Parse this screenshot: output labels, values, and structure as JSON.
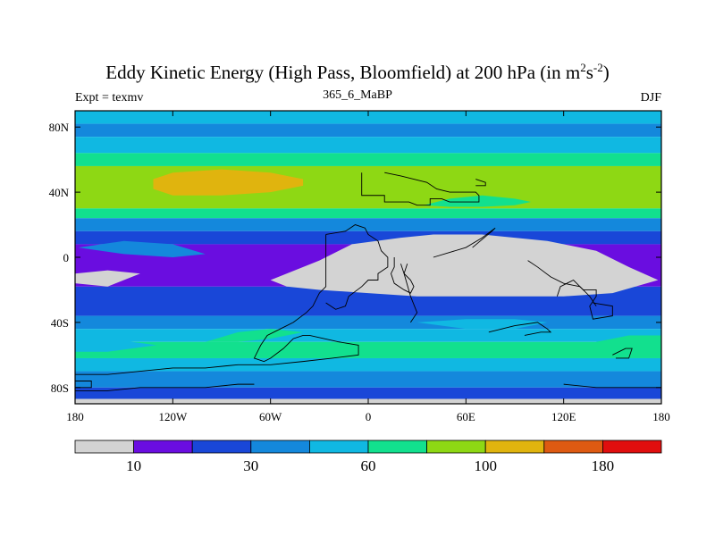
{
  "chart_data": {
    "type": "heatmap",
    "title_main": "Eddy Kinetic Energy (High Pass, Bloomfield) at 200 hPa (in m",
    "title_sup1": "2",
    "title_mid": "s",
    "title_sup2": "-2",
    "title_end": ")",
    "subtitle": "365_6_MaBP",
    "left_label": "Expt = texmv",
    "right_label": "DJF",
    "x_ticks": [
      {
        "lon": -180,
        "label": "180"
      },
      {
        "lon": -120,
        "label": "120W"
      },
      {
        "lon": -60,
        "label": "60W"
      },
      {
        "lon": 0,
        "label": "0"
      },
      {
        "lon": 60,
        "label": "60E"
      },
      {
        "lon": 120,
        "label": "120E"
      },
      {
        "lon": 180,
        "label": "180"
      }
    ],
    "y_ticks": [
      {
        "lat": 80,
        "label": "80N"
      },
      {
        "lat": 40,
        "label": "40N"
      },
      {
        "lat": 0,
        "label": "0"
      },
      {
        "lat": -40,
        "label": "40S"
      },
      {
        "lat": -80,
        "label": "80S"
      }
    ],
    "xlim": [
      -180,
      180
    ],
    "ylim": [
      -90,
      90
    ],
    "colorbar": {
      "colors": [
        "#d3d3d3",
        "#6a0de0",
        "#1947d8",
        "#1488dc",
        "#10b8e2",
        "#12e08e",
        "#8ed814",
        "#e0b40e",
        "#de5a12",
        "#e00e0e"
      ],
      "labels": [
        {
          "boundary_index": 1,
          "label": "10"
        },
        {
          "boundary_index": 3,
          "label": "30"
        },
        {
          "boundary_index": 5,
          "label": "60"
        },
        {
          "boundary_index": 7,
          "label": "100"
        },
        {
          "boundary_index": 9,
          "label": "180"
        }
      ]
    },
    "bands": [
      {
        "lat_top": 90,
        "lat_bottom": 82,
        "level": 4
      },
      {
        "lat_top": 82,
        "lat_bottom": 74,
        "level": 3
      },
      {
        "lat_top": 74,
        "lat_bottom": 64,
        "level": 4
      },
      {
        "lat_top": 64,
        "lat_bottom": 56,
        "level": 5
      },
      {
        "lat_top": 56,
        "lat_bottom": 30,
        "level": 6
      },
      {
        "lat_top": 30,
        "lat_bottom": 24,
        "level": 5
      },
      {
        "lat_top": 24,
        "lat_bottom": 16,
        "level": 3
      },
      {
        "lat_top": 16,
        "lat_bottom": 8,
        "level": 2
      },
      {
        "lat_top": 8,
        "lat_bottom": -18,
        "level": 1
      },
      {
        "lat_top": -18,
        "lat_bottom": -36,
        "level": 2
      },
      {
        "lat_top": -36,
        "lat_bottom": -44,
        "level": 3
      },
      {
        "lat_top": -44,
        "lat_bottom": -52,
        "level": 4
      },
      {
        "lat_top": -52,
        "lat_bottom": -62,
        "level": 5
      },
      {
        "lat_top": -62,
        "lat_bottom": -70,
        "level": 4
      },
      {
        "lat_top": -70,
        "lat_bottom": -80,
        "level": 3
      },
      {
        "lat_top": -80,
        "lat_bottom": -87,
        "level": 2
      },
      {
        "lat_top": -87,
        "lat_bottom": -90,
        "level": 0
      }
    ],
    "regions": [
      {
        "level": 7,
        "points": [
          [
            -132,
            48
          ],
          [
            -120,
            52
          ],
          [
            -90,
            54
          ],
          [
            -60,
            52
          ],
          [
            -40,
            48
          ],
          [
            -40,
            44
          ],
          [
            -60,
            40
          ],
          [
            -90,
            38
          ],
          [
            -120,
            38
          ],
          [
            -132,
            42
          ]
        ]
      },
      {
        "level": 5,
        "points": [
          [
            34,
            32
          ],
          [
            50,
            36
          ],
          [
            70,
            38
          ],
          [
            90,
            36
          ],
          [
            100,
            34
          ],
          [
            90,
            32
          ],
          [
            70,
            31
          ],
          [
            50,
            31
          ]
        ]
      },
      {
        "level": 6,
        "points": [
          [
            138,
            48
          ],
          [
            150,
            52
          ],
          [
            165,
            50
          ],
          [
            172,
            44
          ],
          [
            160,
            40
          ],
          [
            146,
            40
          ]
        ]
      },
      {
        "level": 0,
        "points": [
          [
            -180,
            -10
          ],
          [
            -160,
            -8
          ],
          [
            -140,
            -10
          ],
          [
            -160,
            -18
          ],
          [
            -180,
            -16
          ]
        ]
      },
      {
        "level": 0,
        "points": [
          [
            -60,
            -14
          ],
          [
            -30,
            -2
          ],
          [
            -10,
            8
          ],
          [
            20,
            12
          ],
          [
            40,
            14
          ],
          [
            70,
            14
          ],
          [
            110,
            10
          ],
          [
            140,
            4
          ],
          [
            160,
            -6
          ],
          [
            178,
            -14
          ],
          [
            150,
            -22
          ],
          [
            120,
            -24
          ],
          [
            90,
            -24
          ],
          [
            60,
            -24
          ],
          [
            30,
            -24
          ],
          [
            0,
            -22
          ],
          [
            -30,
            -20
          ],
          [
            -50,
            -18
          ]
        ]
      },
      {
        "level": 3,
        "points": [
          [
            -178,
            6
          ],
          [
            -150,
            10
          ],
          [
            -120,
            8
          ],
          [
            -100,
            2
          ],
          [
            -120,
            0
          ],
          [
            -150,
            2
          ]
        ]
      },
      {
        "level": 4,
        "points": [
          [
            -180,
            -52
          ],
          [
            -160,
            -50
          ],
          [
            -130,
            -54
          ],
          [
            -160,
            -58
          ],
          [
            -180,
            -58
          ]
        ]
      },
      {
        "level": 5,
        "points": [
          [
            -100,
            -52
          ],
          [
            -80,
            -46
          ],
          [
            -60,
            -44
          ],
          [
            -40,
            -46
          ],
          [
            -60,
            -50
          ],
          [
            -80,
            -52
          ]
        ]
      },
      {
        "level": 4,
        "points": [
          [
            30,
            -40
          ],
          [
            60,
            -38
          ],
          [
            90,
            -38
          ],
          [
            110,
            -40
          ],
          [
            90,
            -44
          ],
          [
            60,
            -44
          ]
        ]
      },
      {
        "level": 5,
        "points": [
          [
            140,
            -52
          ],
          [
            160,
            -48
          ],
          [
            180,
            -48
          ],
          [
            180,
            -60
          ],
          [
            160,
            -60
          ],
          [
            140,
            -58
          ]
        ]
      }
    ],
    "coastlines": [
      [
        [
          -4,
          52
        ],
        [
          -4,
          38
        ],
        [
          10,
          38
        ],
        [
          10,
          34
        ],
        [
          25,
          34
        ],
        [
          30,
          32
        ],
        [
          38,
          32
        ],
        [
          38,
          36
        ],
        [
          45,
          36
        ],
        [
          50,
          34
        ],
        [
          68,
          34
        ],
        [
          68,
          38
        ],
        [
          66,
          40
        ],
        [
          50,
          40
        ],
        [
          42,
          42
        ],
        [
          36,
          46
        ],
        [
          28,
          48
        ],
        [
          20,
          50
        ],
        [
          10,
          52
        ]
      ],
      [
        [
          -26,
          14
        ],
        [
          -26,
          -18
        ],
        [
          -30,
          -22
        ],
        [
          -34,
          -30
        ],
        [
          -38,
          -34
        ],
        [
          -46,
          -40
        ],
        [
          -54,
          -44
        ],
        [
          -62,
          -48
        ],
        [
          -66,
          -54
        ],
        [
          -68,
          -58
        ],
        [
          -70,
          -62
        ],
        [
          -64,
          -64
        ],
        [
          -60,
          -62
        ],
        [
          -52,
          -56
        ],
        [
          -46,
          -50
        ],
        [
          -40,
          -48
        ],
        [
          -36,
          -48
        ],
        [
          -18,
          -52
        ],
        [
          -6,
          -54
        ],
        [
          -6,
          -60
        ],
        [
          -22,
          -62
        ],
        [
          -40,
          -64
        ],
        [
          -60,
          -66
        ],
        [
          -80,
          -66
        ],
        [
          -100,
          -68
        ],
        [
          -120,
          -68
        ],
        [
          -140,
          -70
        ],
        [
          -160,
          -72
        ],
        [
          -180,
          -72
        ]
      ],
      [
        [
          -26,
          14
        ],
        [
          -14,
          16
        ],
        [
          -8,
          20
        ],
        [
          -2,
          18
        ],
        [
          0,
          14
        ],
        [
          6,
          10
        ],
        [
          8,
          4
        ],
        [
          12,
          0
        ],
        [
          12,
          -6
        ],
        [
          6,
          -10
        ],
        [
          6,
          -14
        ],
        [
          0,
          -14
        ],
        [
          -4,
          -18
        ],
        [
          -12,
          -24
        ],
        [
          -14,
          -30
        ],
        [
          -20,
          -32
        ],
        [
          -26,
          -28
        ]
      ],
      [
        [
          16,
          0
        ],
        [
          16,
          -6
        ],
        [
          14,
          -10
        ],
        [
          16,
          -16
        ],
        [
          22,
          -20
        ],
        [
          26,
          -22
        ],
        [
          28,
          -18
        ],
        [
          26,
          -14
        ],
        [
          22,
          -10
        ],
        [
          20,
          -4
        ]
      ],
      [
        [
          24,
          -4
        ],
        [
          22,
          -10
        ],
        [
          26,
          -24
        ],
        [
          30,
          -34
        ],
        [
          26,
          -40
        ]
      ],
      [
        [
          40,
          0
        ],
        [
          60,
          6
        ],
        [
          70,
          12
        ],
        [
          78,
          18
        ],
        [
          76,
          16
        ],
        [
          64,
          6
        ]
      ],
      [
        [
          98,
          -2
        ],
        [
          104,
          -6
        ],
        [
          112,
          -12
        ],
        [
          120,
          -16
        ],
        [
          130,
          -18
        ],
        [
          136,
          -24
        ],
        [
          140,
          -30
        ]
      ],
      [
        [
          74,
          -46
        ],
        [
          90,
          -42
        ],
        [
          104,
          -40
        ],
        [
          110,
          -44
        ],
        [
          112,
          -46
        ],
        [
          106,
          -46
        ],
        [
          96,
          -48
        ]
      ],
      [
        [
          116,
          -24
        ],
        [
          118,
          -18
        ],
        [
          126,
          -14
        ],
        [
          132,
          -20
        ],
        [
          140,
          -20
        ],
        [
          140,
          -24
        ],
        [
          136,
          -30
        ],
        [
          138,
          -38
        ],
        [
          150,
          -36
        ],
        [
          150,
          -30
        ],
        [
          138,
          -28
        ]
      ],
      [
        [
          150,
          -60
        ],
        [
          158,
          -56
        ],
        [
          162,
          -56
        ],
        [
          160,
          -62
        ],
        [
          152,
          -62
        ]
      ],
      [
        [
          -180,
          -82
        ],
        [
          -160,
          -82
        ],
        [
          -140,
          -80
        ],
        [
          -120,
          -80
        ],
        [
          -100,
          -80
        ],
        [
          -80,
          -78
        ],
        [
          -70,
          -78
        ]
      ],
      [
        [
          120,
          -78
        ],
        [
          140,
          -80
        ],
        [
          160,
          -80
        ],
        [
          180,
          -80
        ]
      ],
      [
        [
          66,
          48
        ],
        [
          72,
          46
        ],
        [
          72,
          44
        ],
        [
          66,
          44
        ]
      ],
      [
        [
          -180,
          -76
        ],
        [
          -170,
          -76
        ],
        [
          -170,
          -80
        ],
        [
          -180,
          -80
        ]
      ]
    ]
  }
}
